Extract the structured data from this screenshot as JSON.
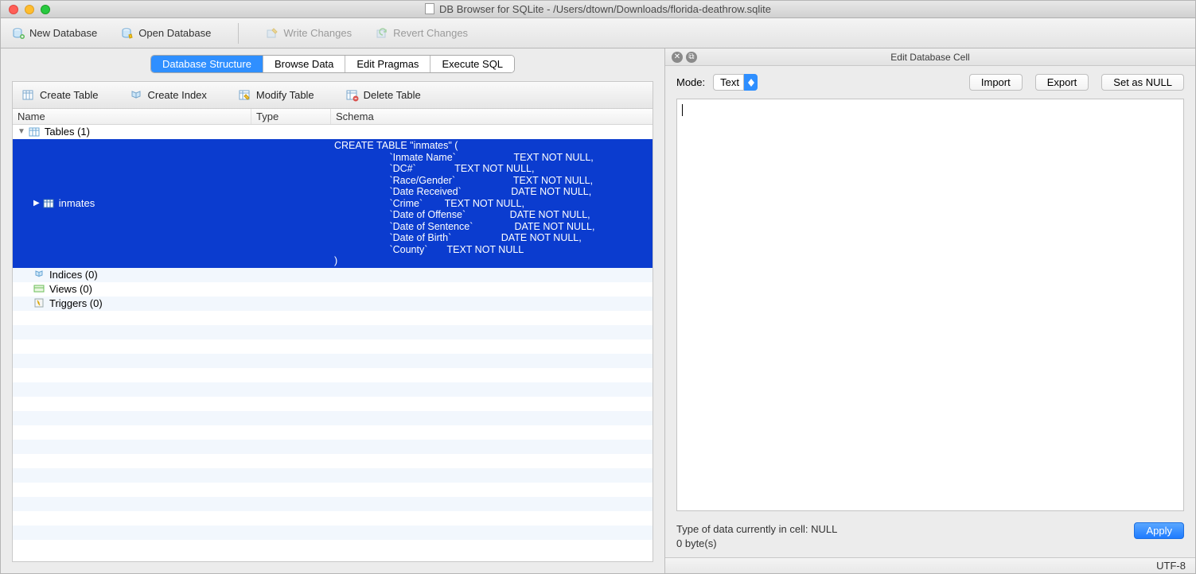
{
  "window": {
    "title": "DB Browser for SQLite - /Users/dtown/Downloads/florida-deathrow.sqlite"
  },
  "toolbar": {
    "new_db": "New Database",
    "open_db": "Open Database",
    "write_changes": "Write Changes",
    "revert_changes": "Revert Changes"
  },
  "tabs": {
    "structure": "Database Structure",
    "browse": "Browse Data",
    "pragmas": "Edit Pragmas",
    "execute": "Execute SQL"
  },
  "subtoolbar": {
    "create_table": "Create Table",
    "create_index": "Create Index",
    "modify_table": "Modify Table",
    "delete_table": "Delete Table"
  },
  "tree": {
    "headers": {
      "name": "Name",
      "type": "Type",
      "schema": "Schema"
    },
    "tables_label": "Tables (1)",
    "selected_table": "inmates",
    "schema_sql": "CREATE TABLE \"inmates\" (\n                    `Inmate Name`                     TEXT NOT NULL,\n                    `DC#`              TEXT NOT NULL,\n                    `Race/Gender`                     TEXT NOT NULL,\n                    `Date Received`                  DATE NOT NULL,\n                    `Crime`        TEXT NOT NULL,\n                    `Date of Offense`                DATE NOT NULL,\n                    `Date of Sentence`               DATE NOT NULL,\n                    `Date of Birth`                  DATE NOT NULL,\n                    `County`       TEXT NOT NULL\n)",
    "indices_label": "Indices (0)",
    "views_label": "Views (0)",
    "triggers_label": "Triggers (0)"
  },
  "editor": {
    "panel_title": "Edit Database Cell",
    "mode_label": "Mode:",
    "mode_value": "Text",
    "import": "Import",
    "export": "Export",
    "set_null": "Set as NULL",
    "type_info": "Type of data currently in cell: NULL",
    "size_info": "0 byte(s)",
    "apply": "Apply"
  },
  "statusbar": {
    "encoding": "UTF-8"
  },
  "colors": {
    "selection": "#0b3ccf",
    "tab_active": "#2f8fff",
    "stripe": "#f2f7fd"
  }
}
